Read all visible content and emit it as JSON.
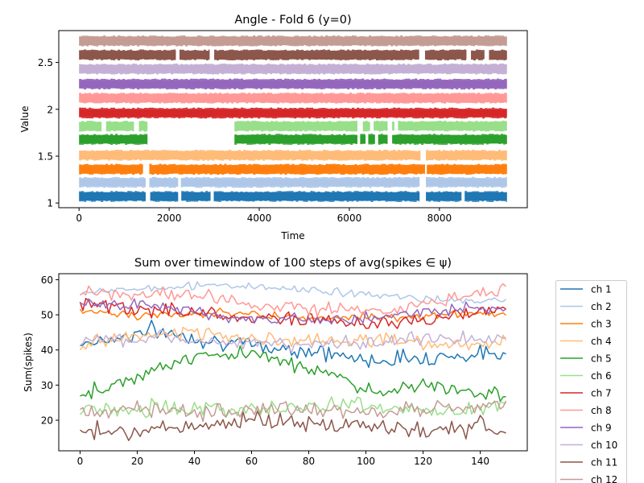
{
  "chart_data": [
    {
      "type": "scatter",
      "title": "Angle - Fold 6 (y=0)",
      "xlabel": "Time",
      "ylabel": "Value",
      "xlim": [
        -450,
        9950
      ],
      "ylim": [
        0.95,
        2.84
      ],
      "xticks": [
        0,
        2000,
        4000,
        6000,
        8000
      ],
      "yticks": [
        1.0,
        1.5,
        2.0,
        2.5
      ],
      "x_max": 9500,
      "grid": false,
      "legend": "none",
      "bands": [
        {
          "name": "ch 1",
          "color": "#1f77b4",
          "center": 1.07,
          "gaps": [
            [
              1480,
              1580
            ],
            [
              2200,
              2270
            ],
            [
              2920,
              2990
            ],
            [
              7560,
              7700
            ],
            [
              8490,
              8560
            ]
          ]
        },
        {
          "name": "ch 2",
          "color": "#aec7e8",
          "center": 1.22,
          "gaps": [
            [
              1480,
              1560
            ],
            [
              2200,
              2260
            ],
            [
              7560,
              7700
            ]
          ]
        },
        {
          "name": "ch 3",
          "color": "#ff7f0e",
          "center": 1.36,
          "gaps": [
            [
              1420,
              1560
            ],
            [
              7680,
              7720
            ]
          ]
        },
        {
          "name": "ch 4",
          "color": "#ffbb78",
          "center": 1.51,
          "gaps": [
            [
              7580,
              7700
            ]
          ]
        },
        {
          "name": "ch 5",
          "color": "#2ca02c",
          "center": 1.68,
          "gaps": [
            [
              1520,
              3450
            ],
            [
              6180,
              6240
            ],
            [
              6360,
              6420
            ],
            [
              6570,
              6640
            ],
            [
              6850,
              6950
            ]
          ]
        },
        {
          "name": "ch 6",
          "color": "#98df8a",
          "center": 1.82,
          "gaps": [
            [
              500,
              600
            ],
            [
              1220,
              1330
            ],
            [
              1520,
              3450
            ],
            [
              6180,
              6300
            ],
            [
              6460,
              6540
            ],
            [
              6850,
              6950
            ],
            [
              7000,
              7080
            ]
          ]
        },
        {
          "name": "ch 7",
          "color": "#d62728",
          "center": 1.96,
          "gaps": []
        },
        {
          "name": "ch 8",
          "color": "#ff9896",
          "center": 2.12,
          "gaps": []
        },
        {
          "name": "ch 9",
          "color": "#9467bd",
          "center": 2.27,
          "gaps": []
        },
        {
          "name": "ch 10",
          "color": "#c5b0d5",
          "center": 2.43,
          "gaps": []
        },
        {
          "name": "ch 11",
          "color": "#8c564b",
          "center": 2.58,
          "gaps": [
            [
              2150,
              2230
            ],
            [
              2900,
              3000
            ],
            [
              7550,
              7680
            ],
            [
              8600,
              8700
            ],
            [
              9000,
              9100
            ]
          ]
        },
        {
          "name": "ch 12",
          "color": "#c49c94",
          "center": 2.73,
          "gaps": []
        }
      ]
    },
    {
      "type": "line",
      "title": "Sum over timewindow of 100 steps of avg(spikes ∈ ψ)",
      "xlabel": "",
      "ylabel": "Sum(spikes)",
      "xlim": [
        -7.45,
        156.45
      ],
      "ylim": [
        11.3,
        61.7
      ],
      "xticks": [
        0,
        20,
        40,
        60,
        80,
        100,
        120,
        140
      ],
      "yticks": [
        20,
        30,
        40,
        50,
        60
      ],
      "grid": false,
      "legend": "outside-right",
      "n_points": 150,
      "series": [
        {
          "name": "ch 1",
          "color": "#1f77b4",
          "anchors": [
            [
              0,
              42
            ],
            [
              10,
              43
            ],
            [
              25,
              45.5
            ],
            [
              45,
              43
            ],
            [
              60,
              41
            ],
            [
              80,
              40
            ],
            [
              100,
              37
            ],
            [
              120,
              38
            ],
            [
              149,
              39
            ]
          ],
          "amp": 1.8
        },
        {
          "name": "ch 2",
          "color": "#aec7e8",
          "anchors": [
            [
              0,
              56
            ],
            [
              20,
              57.5
            ],
            [
              50,
              58.5
            ],
            [
              70,
              57.5
            ],
            [
              90,
              56.5
            ],
            [
              110,
              55
            ],
            [
              130,
              54
            ],
            [
              149,
              54
            ]
          ],
          "amp": 0.8
        },
        {
          "name": "ch 3",
          "color": "#ff7f0e",
          "anchors": [
            [
              0,
              51
            ],
            [
              20,
              50
            ],
            [
              50,
              50.5
            ],
            [
              80,
              49
            ],
            [
              110,
              49.5
            ],
            [
              130,
              50
            ],
            [
              149,
              50
            ]
          ],
          "amp": 0.9
        },
        {
          "name": "ch 4",
          "color": "#ffbb78",
          "anchors": [
            [
              0,
              41
            ],
            [
              20,
              44
            ],
            [
              40,
              45
            ],
            [
              60,
              43
            ],
            [
              80,
              42.5
            ],
            [
              100,
              43
            ],
            [
              120,
              42
            ],
            [
              149,
              42
            ]
          ],
          "amp": 1.5
        },
        {
          "name": "ch 5",
          "color": "#2ca02c",
          "anchors": [
            [
              0,
              26
            ],
            [
              5,
              28.5
            ],
            [
              15,
              31
            ],
            [
              25,
              34
            ],
            [
              35,
              37
            ],
            [
              45,
              39
            ],
            [
              60,
              38.5
            ],
            [
              75,
              36
            ],
            [
              85,
              34
            ],
            [
              95,
              31
            ],
            [
              105,
              27
            ],
            [
              115,
              30
            ],
            [
              125,
              30
            ],
            [
              135,
              28
            ],
            [
              149,
              27
            ]
          ],
          "amp": 1.6
        },
        {
          "name": "ch 6",
          "color": "#98df8a",
          "anchors": [
            [
              0,
              23
            ],
            [
              20,
              23.5
            ],
            [
              40,
              23
            ],
            [
              60,
              23.5
            ],
            [
              80,
              24
            ],
            [
              95,
              25
            ],
            [
              110,
              23
            ],
            [
              130,
              22.5
            ],
            [
              149,
              24
            ]
          ],
          "amp": 1.7
        },
        {
          "name": "ch 7",
          "color": "#d62728",
          "anchors": [
            [
              0,
              53
            ],
            [
              20,
              51
            ],
            [
              40,
              51
            ],
            [
              60,
              49
            ],
            [
              80,
              49
            ],
            [
              100,
              47.5
            ],
            [
              120,
              48
            ],
            [
              140,
              51
            ],
            [
              149,
              52
            ]
          ],
          "amp": 1.6
        },
        {
          "name": "ch 8",
          "color": "#ff9896",
          "anchors": [
            [
              0,
              57
            ],
            [
              20,
              55.5
            ],
            [
              40,
              56
            ],
            [
              60,
              53
            ],
            [
              80,
              52
            ],
            [
              100,
              51
            ],
            [
              120,
              53
            ],
            [
              140,
              56
            ],
            [
              149,
              57.5
            ]
          ],
          "amp": 1.4
        },
        {
          "name": "ch 9",
          "color": "#9467bd",
          "anchors": [
            [
              0,
              53
            ],
            [
              20,
              53
            ],
            [
              40,
              51
            ],
            [
              60,
              49
            ],
            [
              80,
              49
            ],
            [
              100,
              49
            ],
            [
              120,
              51
            ],
            [
              149,
              52
            ]
          ],
          "amp": 1.3
        },
        {
          "name": "ch 10",
          "color": "#c5b0d5",
          "anchors": [
            [
              0,
              43
            ],
            [
              20,
              43
            ],
            [
              40,
              43
            ],
            [
              60,
              42
            ],
            [
              80,
              41
            ],
            [
              100,
              42.5
            ],
            [
              120,
              43
            ],
            [
              149,
              43
            ]
          ],
          "amp": 1.5
        },
        {
          "name": "ch 11",
          "color": "#8c564b",
          "anchors": [
            [
              0,
              17
            ],
            [
              20,
              17
            ],
            [
              40,
              18.5
            ],
            [
              60,
              20
            ],
            [
              80,
              19.5
            ],
            [
              100,
              18
            ],
            [
              120,
              17.5
            ],
            [
              140,
              18
            ],
            [
              149,
              17
            ]
          ],
          "amp": 2.0
        },
        {
          "name": "ch 12",
          "color": "#c49c94",
          "anchors": [
            [
              0,
              23
            ],
            [
              20,
              23
            ],
            [
              40,
              22
            ],
            [
              60,
              23
            ],
            [
              80,
              23
            ],
            [
              100,
              22
            ],
            [
              120,
              23
            ],
            [
              140,
              24
            ],
            [
              149,
              25
            ]
          ],
          "amp": 1.7
        }
      ]
    }
  ]
}
